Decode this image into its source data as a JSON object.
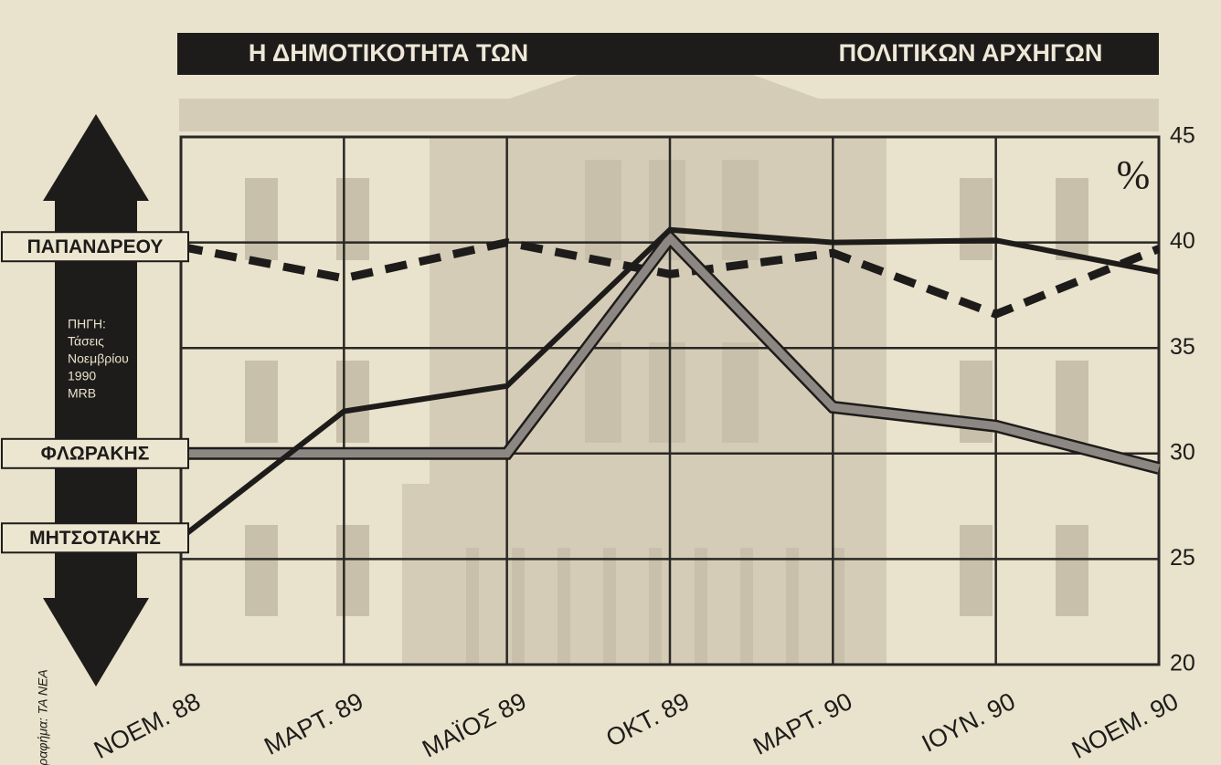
{
  "chart_data": {
    "type": "line",
    "title": [
      "Η ΔΗΜΟΤΙΚΟΤΗΤΑ ΤΩΝ",
      "ΠΟΛΙΤΙΚΩΝ ΑΡΧΗΓΩΝ"
    ],
    "unit": "%",
    "source": [
      "ΠΗΓΗ:",
      "Τάσεις",
      "Νοεμβρίου",
      "1990",
      "MRB"
    ],
    "credit": "Γραφήμα: ΤΑ ΝΕΑ",
    "categories": [
      "ΝΟΕΜ. 88",
      "ΜΑΡΤ. 89",
      "ΜΑΪΟΣ 89",
      "ΟΚΤ. 89",
      "ΜΑΡΤ. 90",
      "ΙΟΥΝ. 90",
      "ΝΟΕΜ. 90"
    ],
    "series": [
      {
        "name": "ΠΑΠΑΝΔΡΕΟΥ",
        "color": "#1e1c1a",
        "style": "dashed",
        "values": [
          39.8,
          38.3,
          40,
          38.5,
          39.5,
          36.6,
          39.7
        ]
      },
      {
        "name": "ΦΛΩΡΑΚΗΣ",
        "color": "#8c8782",
        "style": "outlined",
        "values": [
          30,
          30,
          30,
          40.2,
          32.2,
          31.3,
          29.3
        ]
      },
      {
        "name": "ΜΗΤΣΟΤΑΚΗΣ",
        "color": "#1e1c1a",
        "style": "solid",
        "values": [
          26,
          32,
          33.2,
          40.6,
          40,
          40.1,
          38.6
        ]
      }
    ],
    "ylim": [
      20,
      45
    ],
    "yticks": [
      20,
      25,
      30,
      35,
      40,
      45
    ],
    "grid": true
  }
}
